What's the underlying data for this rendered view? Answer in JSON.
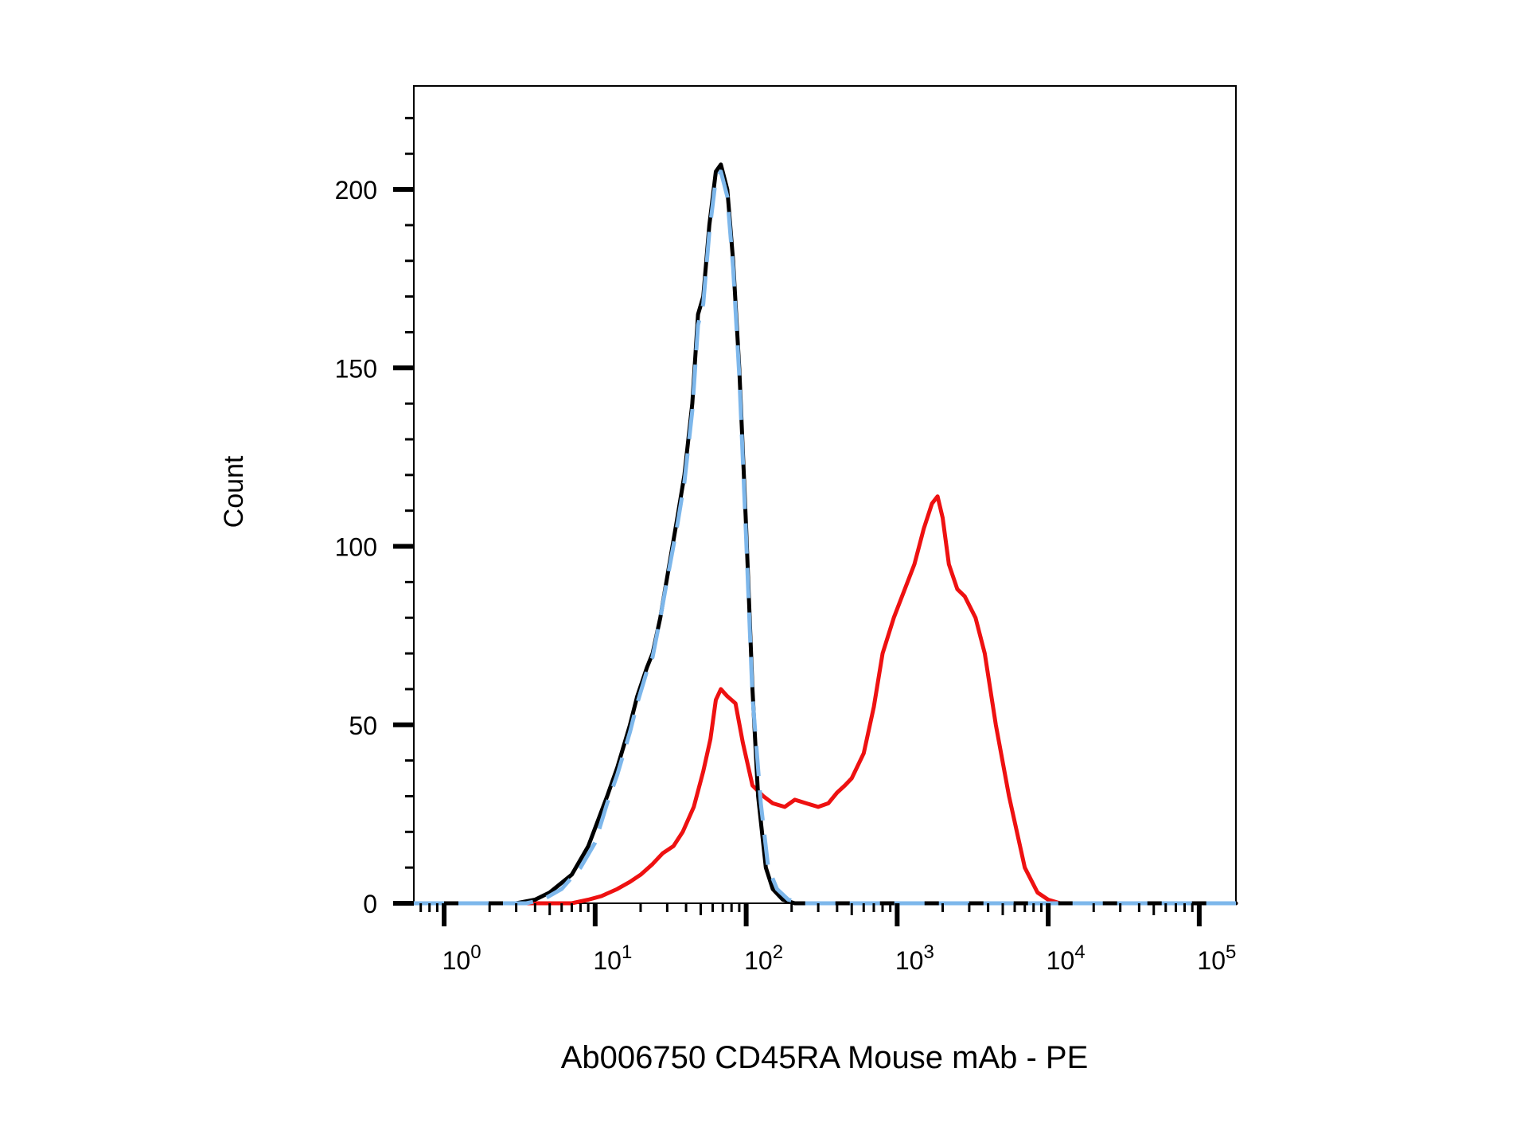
{
  "chart_data": {
    "type": "line",
    "title": "",
    "xlabel": "Ab006750 CD45RA Mouse mAb - PE",
    "ylabel": "Count",
    "x_scale": "log",
    "xlim": [
      0.63,
      175000
    ],
    "ylim": [
      0,
      229
    ],
    "grid": false,
    "legend": "none",
    "x_ticks": [
      {
        "value": 1,
        "base": "10",
        "exp": "0"
      },
      {
        "value": 10,
        "base": "10",
        "exp": "1"
      },
      {
        "value": 100,
        "base": "10",
        "exp": "2"
      },
      {
        "value": 1000,
        "base": "10",
        "exp": "3"
      },
      {
        "value": 10000,
        "base": "10",
        "exp": "4"
      },
      {
        "value": 100000,
        "base": "10",
        "exp": "5"
      }
    ],
    "y_ticks": [
      {
        "value": 0,
        "label": "0"
      },
      {
        "value": 50,
        "label": "50"
      },
      {
        "value": 100,
        "label": "100"
      },
      {
        "value": 150,
        "label": "150"
      },
      {
        "value": 200,
        "label": "200"
      }
    ],
    "series": [
      {
        "color": "#000000",
        "style": "solid",
        "points": [
          [
            0.63,
            0
          ],
          [
            3,
            0
          ],
          [
            4,
            1
          ],
          [
            5,
            3
          ],
          [
            7,
            8
          ],
          [
            9,
            16
          ],
          [
            12,
            30
          ],
          [
            14,
            38
          ],
          [
            17,
            50
          ],
          [
            19,
            58
          ],
          [
            22,
            66
          ],
          [
            24,
            70
          ],
          [
            27,
            80
          ],
          [
            31,
            95
          ],
          [
            35,
            108
          ],
          [
            39,
            120
          ],
          [
            44,
            140
          ],
          [
            48,
            165
          ],
          [
            52,
            170
          ],
          [
            57,
            190
          ],
          [
            63,
            205
          ],
          [
            68,
            207
          ],
          [
            75,
            200
          ],
          [
            82,
            180
          ],
          [
            90,
            150
          ],
          [
            100,
            105
          ],
          [
            110,
            60
          ],
          [
            120,
            30
          ],
          [
            135,
            10
          ],
          [
            150,
            4
          ],
          [
            175,
            1
          ],
          [
            210,
            0
          ],
          [
            175000,
            0
          ]
        ]
      },
      {
        "color": "#7DB7EB",
        "style": "dashed",
        "points": [
          [
            0.63,
            0
          ],
          [
            3.5,
            0
          ],
          [
            4.5,
            1
          ],
          [
            6,
            4
          ],
          [
            8,
            10
          ],
          [
            10,
            17
          ],
          [
            12,
            28
          ],
          [
            14,
            36
          ],
          [
            17,
            48
          ],
          [
            19,
            56
          ],
          [
            22,
            65
          ],
          [
            24,
            69
          ],
          [
            27,
            80
          ],
          [
            31,
            94
          ],
          [
            35,
            106
          ],
          [
            39,
            118
          ],
          [
            44,
            138
          ],
          [
            48,
            162
          ],
          [
            52,
            168
          ],
          [
            57,
            188
          ],
          [
            63,
            203
          ],
          [
            68,
            205
          ],
          [
            75,
            198
          ],
          [
            82,
            178
          ],
          [
            90,
            148
          ],
          [
            100,
            102
          ],
          [
            110,
            58
          ],
          [
            125,
            28
          ],
          [
            140,
            10
          ],
          [
            160,
            4
          ],
          [
            190,
            1
          ],
          [
            240,
            0
          ],
          [
            175000,
            0
          ]
        ]
      },
      {
        "color": "#EE1111",
        "style": "solid",
        "points": [
          [
            0.63,
            0
          ],
          [
            7,
            0
          ],
          [
            9,
            1
          ],
          [
            11,
            2
          ],
          [
            14,
            4
          ],
          [
            17,
            6
          ],
          [
            20,
            8
          ],
          [
            24,
            11
          ],
          [
            28,
            14
          ],
          [
            33,
            16
          ],
          [
            38,
            20
          ],
          [
            45,
            27
          ],
          [
            52,
            37
          ],
          [
            58,
            46
          ],
          [
            63,
            57
          ],
          [
            68,
            60
          ],
          [
            75,
            58
          ],
          [
            85,
            56
          ],
          [
            95,
            45
          ],
          [
            110,
            33
          ],
          [
            130,
            30
          ],
          [
            150,
            28
          ],
          [
            180,
            27
          ],
          [
            210,
            29
          ],
          [
            250,
            28
          ],
          [
            300,
            27
          ],
          [
            350,
            28
          ],
          [
            400,
            31
          ],
          [
            450,
            33
          ],
          [
            500,
            35
          ],
          [
            600,
            42
          ],
          [
            700,
            55
          ],
          [
            800,
            70
          ],
          [
            950,
            80
          ],
          [
            1100,
            87
          ],
          [
            1300,
            95
          ],
          [
            1500,
            105
          ],
          [
            1700,
            112
          ],
          [
            1850,
            114
          ],
          [
            2000,
            108
          ],
          [
            2200,
            95
          ],
          [
            2500,
            88
          ],
          [
            2800,
            86
          ],
          [
            3300,
            80
          ],
          [
            3800,
            70
          ],
          [
            4500,
            50
          ],
          [
            5500,
            30
          ],
          [
            7000,
            10
          ],
          [
            8500,
            3
          ],
          [
            10000,
            1
          ],
          [
            12000,
            0
          ],
          [
            175000,
            0
          ]
        ]
      }
    ]
  }
}
